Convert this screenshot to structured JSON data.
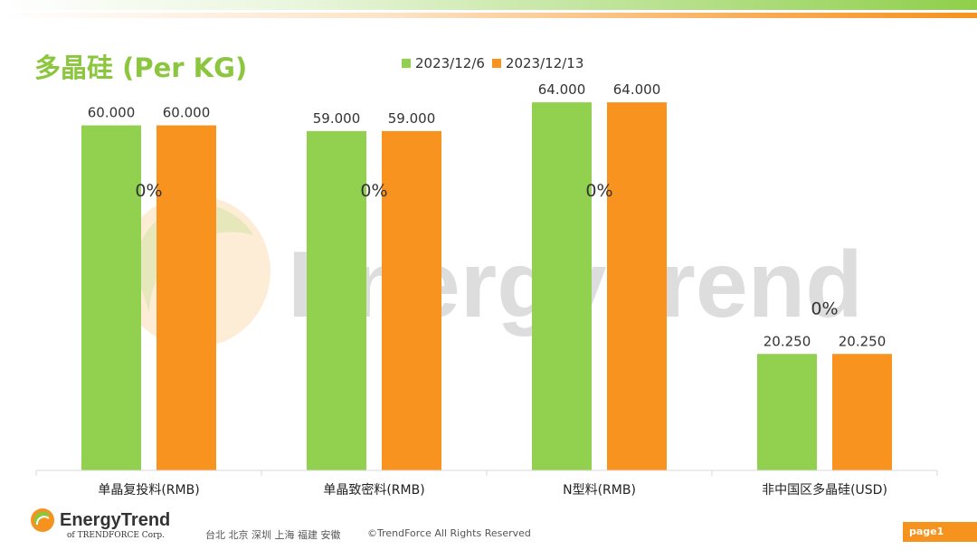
{
  "title": "多晶硅 (Per KG)",
  "watermark": "EnergyTrend",
  "colors": {
    "series1": "#92d050",
    "series2": "#f7931e",
    "title": "#8cc63f",
    "page_badge": "#f6921e"
  },
  "chart_data": {
    "type": "bar",
    "categories": [
      "单晶复投料(RMB)",
      "单晶致密料(RMB)",
      "N型料(RMB)",
      "非中国区多晶硅(USD)"
    ],
    "series": [
      {
        "name": "2023/12/6",
        "values": [
          60.0,
          59.0,
          64.0,
          20.25
        ],
        "labels": [
          "60.000",
          "59.000",
          "64.000",
          "20.250"
        ],
        "color": "#92d050"
      },
      {
        "name": "2023/12/13",
        "values": [
          60.0,
          59.0,
          64.0,
          20.25
        ],
        "labels": [
          "60.000",
          "59.000",
          "64.000",
          "20.250"
        ],
        "color": "#f7931e"
      }
    ],
    "change_labels": [
      "0%",
      "0%",
      "0%",
      "0%"
    ],
    "ylim": [
      0,
      70
    ],
    "legend": "top",
    "grid": false
  },
  "footer": {
    "logo_name": "EnergyTrend",
    "logo_sub": "of TRENDFORCE Corp.",
    "cities": "台北  北京  深圳  上海  福建  安徽",
    "copyright": "©TrendForce All Rights Reserved",
    "page": "page1"
  }
}
